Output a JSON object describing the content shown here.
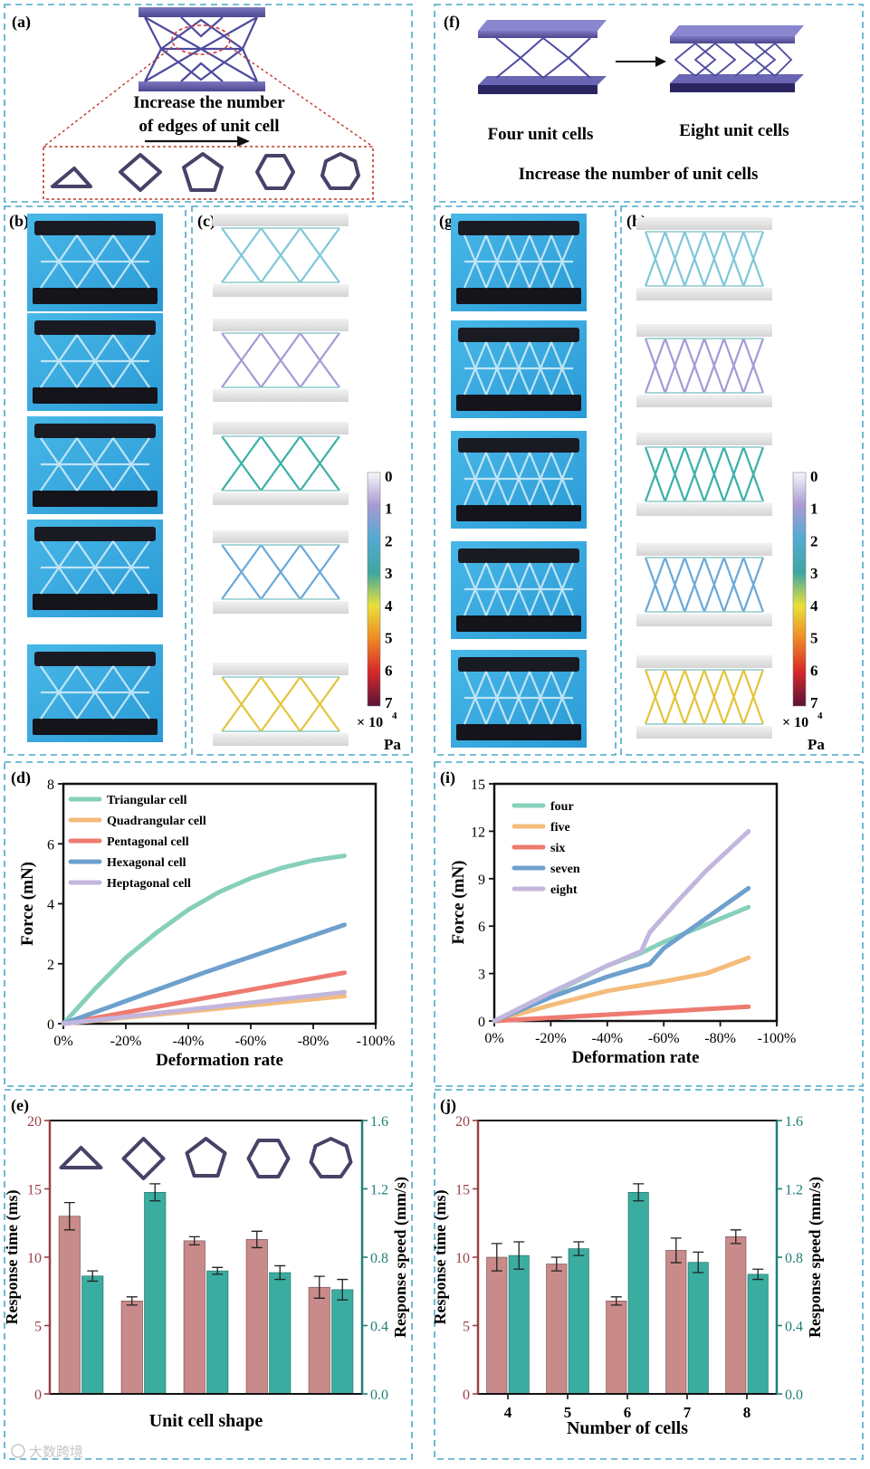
{
  "panel_letters": {
    "a": "(a)",
    "b": "(b)",
    "c": "(c)",
    "d": "(d)",
    "e": "(e)",
    "f": "(f)",
    "g": "(g)",
    "h": "(h)",
    "i": "(i)",
    "j": "(j)"
  },
  "panel_a": {
    "caption_line1": "Increase the number",
    "caption_line2": "of  edges of unit cell"
  },
  "panel_f": {
    "label_left": "Four unit cells",
    "label_right": "Eight unit cells",
    "caption": "Increase the number of unit cells"
  },
  "colorbar": {
    "ticks": [
      "0",
      "1",
      "2",
      "3",
      "4",
      "5",
      "6",
      "7"
    ],
    "multiplier": "× 10",
    "exponent": "4",
    "unit": "Pa"
  },
  "watermark": "大数跨境",
  "colors": {
    "border": "#4aa8c9",
    "bar_time": "#c98a8a",
    "bar_speed": "#3aada0",
    "right_axis": "#1f7f76",
    "left_axis": "#9a3f46",
    "shape_stroke": "#4a4068"
  },
  "chart_data": [
    {
      "id": "d",
      "type": "line",
      "xlabel": "Deformation rate",
      "ylabel": "Force (mN)",
      "x_ticks": [
        "0%",
        "-20%",
        "-40%",
        "-60%",
        "-80%",
        "-100%"
      ],
      "xlim": [
        0,
        -100
      ],
      "ylim": [
        0,
        8
      ],
      "y_ticks": [
        0,
        2,
        4,
        6,
        8
      ],
      "series": [
        {
          "name": "Triangular cell",
          "color": "#86d0bb",
          "x": [
            0,
            -10,
            -20,
            -30,
            -40,
            -50,
            -60,
            -70,
            -80,
            -90
          ],
          "y": [
            0,
            1.15,
            2.2,
            3.05,
            3.8,
            4.4,
            4.85,
            5.2,
            5.45,
            5.6
          ]
        },
        {
          "name": "Quadrangular cell",
          "color": "#f4bb7a",
          "x": [
            0,
            -90
          ],
          "y": [
            0,
            0.92
          ]
        },
        {
          "name": "Pentagonal cell",
          "color": "#ee7a70",
          "x": [
            0,
            -90
          ],
          "y": [
            0,
            1.7
          ]
        },
        {
          "name": "Hexagonal cell",
          "color": "#6ea0cd",
          "x": [
            0,
            -45,
            -90
          ],
          "y": [
            0,
            1.7,
            3.3
          ]
        },
        {
          "name": "Heptagonal cell",
          "color": "#c3b6de",
          "x": [
            0,
            -90
          ],
          "y": [
            0,
            1.05
          ]
        }
      ]
    },
    {
      "id": "i",
      "type": "line",
      "xlabel": "Deformation rate",
      "ylabel": "Force (mN)",
      "x_ticks": [
        "0%",
        "-20%",
        "-40%",
        "-60%",
        "-80%",
        "-100%"
      ],
      "xlim": [
        0,
        -100
      ],
      "ylim": [
        0,
        15
      ],
      "y_ticks": [
        0,
        3,
        6,
        9,
        12,
        15
      ],
      "series": [
        {
          "name": "four",
          "color": "#86d0bb",
          "x": [
            0,
            -20,
            -40,
            -52,
            -60,
            -75,
            -90
          ],
          "y": [
            0,
            1.7,
            3.5,
            4.3,
            5.0,
            6.1,
            7.2
          ]
        },
        {
          "name": "five",
          "color": "#f4bb7a",
          "x": [
            0,
            -20,
            -40,
            -60,
            -75,
            -90
          ],
          "y": [
            0,
            1.0,
            1.9,
            2.5,
            3.0,
            4.0
          ]
        },
        {
          "name": "six",
          "color": "#ee7a70",
          "x": [
            0,
            -90
          ],
          "y": [
            0,
            0.9
          ]
        },
        {
          "name": "seven",
          "color": "#6ea0cd",
          "x": [
            0,
            -20,
            -40,
            -55,
            -60,
            -75,
            -90
          ],
          "y": [
            0,
            1.5,
            2.8,
            3.6,
            4.6,
            6.5,
            8.4
          ]
        },
        {
          "name": "eight",
          "color": "#c3b6de",
          "x": [
            0,
            -20,
            -40,
            -52,
            -55,
            -65,
            -75,
            -90
          ],
          "y": [
            0,
            1.8,
            3.5,
            4.4,
            5.6,
            7.6,
            9.5,
            12.0
          ]
        }
      ]
    },
    {
      "id": "e",
      "type": "bar",
      "xlabel": "Unit cell  shape",
      "ylabel": "Response time (ms)",
      "y2label": "Response speed (mm/s)",
      "categories": [
        "triangle",
        "quadrangle",
        "pentagon",
        "hexagon",
        "heptagon"
      ],
      "ylim": [
        0,
        20
      ],
      "y_ticks": [
        0,
        5,
        10,
        15,
        20
      ],
      "y2lim": [
        0,
        1.6
      ],
      "y2_ticks": [
        "0.0",
        "0.4",
        "0.8",
        "1.2",
        "1.6"
      ],
      "series": [
        {
          "name": "Response time (ms)",
          "axis": "left",
          "values": [
            13.0,
            6.8,
            11.2,
            11.3,
            7.8
          ],
          "errors": [
            1.0,
            0.3,
            0.3,
            0.6,
            0.8
          ]
        },
        {
          "name": "Response speed (mm/s)",
          "axis": "right",
          "values": [
            0.69,
            1.18,
            0.72,
            0.71,
            0.61
          ],
          "errors": [
            0.03,
            0.05,
            0.02,
            0.04,
            0.06
          ]
        }
      ]
    },
    {
      "id": "j",
      "type": "bar",
      "xlabel": "Number of cells",
      "ylabel": "Response time (ms)",
      "y2label": "Response speed (mm/s)",
      "categories": [
        "4",
        "5",
        "6",
        "7",
        "8"
      ],
      "ylim": [
        0,
        20
      ],
      "y_ticks": [
        0,
        5,
        10,
        15,
        20
      ],
      "y2lim": [
        0,
        1.6
      ],
      "y2_ticks": [
        "0.0",
        "0.4",
        "0.8",
        "1.2",
        "1.6"
      ],
      "series": [
        {
          "name": "Response time (ms)",
          "axis": "left",
          "values": [
            10.0,
            9.5,
            6.8,
            10.5,
            11.5
          ],
          "errors": [
            1.0,
            0.5,
            0.3,
            0.9,
            0.5
          ]
        },
        {
          "name": "Response speed (mm/s)",
          "axis": "right",
          "values": [
            0.81,
            0.85,
            1.18,
            0.77,
            0.7
          ],
          "errors": [
            0.08,
            0.04,
            0.05,
            0.06,
            0.03
          ]
        }
      ]
    }
  ]
}
